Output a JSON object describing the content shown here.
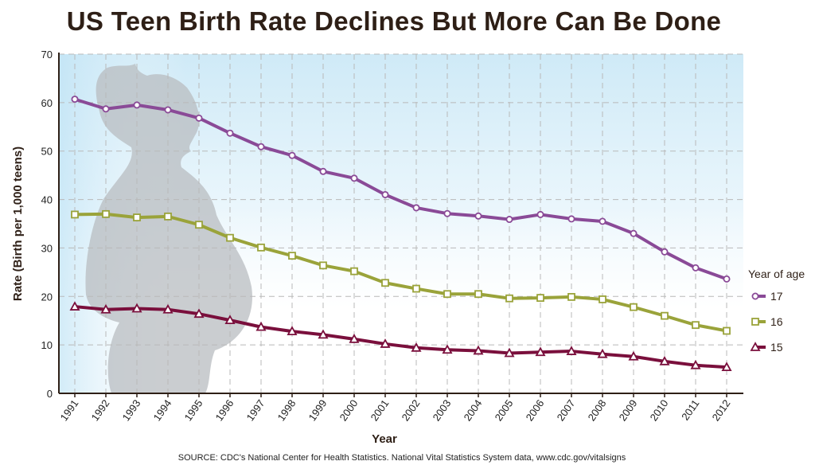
{
  "chart_data": {
    "type": "line",
    "title": "US Teen Birth Rate Declines But More Can Be Done",
    "xlabel": "Year",
    "ylabel": "Rate (Birth per 1,000 teens)",
    "source": "SOURCE: CDC's National Center for Health Statistics. National Vital Statistics System data, www.cdc.gov/vitalsigns",
    "x": [
      "1991",
      "1992",
      "1993",
      "1994",
      "1995",
      "1996",
      "1997",
      "1998",
      "1999",
      "2000",
      "2001",
      "2002",
      "2003",
      "2004",
      "2005",
      "2006",
      "2007",
      "2008",
      "2009",
      "2010",
      "2011",
      "2012"
    ],
    "ylim": [
      0,
      70
    ],
    "yticks": [
      0,
      10,
      20,
      30,
      40,
      50,
      60,
      70
    ],
    "grid": true,
    "legend_title": "Year of age",
    "legend_position": "right",
    "series": [
      {
        "name": "17",
        "marker": "circle",
        "color": "#8a4a97",
        "values": [
          60.7,
          58.7,
          59.5,
          58.5,
          56.8,
          53.7,
          50.9,
          49.1,
          45.8,
          44.4,
          41.0,
          38.3,
          37.1,
          36.6,
          35.9,
          36.9,
          36.0,
          35.5,
          33.0,
          29.2,
          25.9,
          23.6
        ]
      },
      {
        "name": "16",
        "marker": "square",
        "color": "#9aa33a",
        "values": [
          36.9,
          37.0,
          36.3,
          36.5,
          34.8,
          32.1,
          30.1,
          28.4,
          26.4,
          25.2,
          22.8,
          21.6,
          20.5,
          20.5,
          19.6,
          19.7,
          19.9,
          19.4,
          17.8,
          16.0,
          14.1,
          12.9
        ]
      },
      {
        "name": "15",
        "marker": "triangle",
        "color": "#7a0f3c",
        "values": [
          17.9,
          17.3,
          17.5,
          17.3,
          16.4,
          15.1,
          13.7,
          12.8,
          12.1,
          11.2,
          10.2,
          9.4,
          9.0,
          8.8,
          8.3,
          8.5,
          8.7,
          8.1,
          7.6,
          6.6,
          5.8,
          5.4
        ]
      }
    ]
  }
}
